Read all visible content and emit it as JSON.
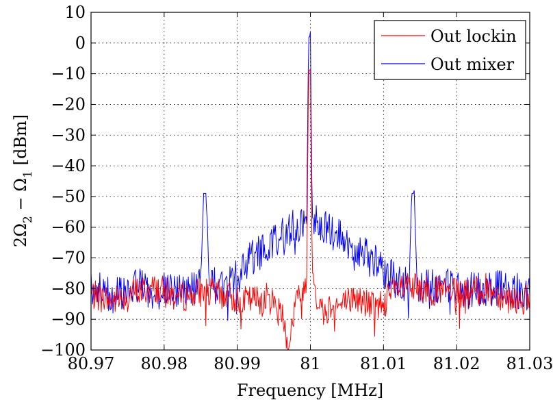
{
  "chart_data": {
    "type": "line",
    "xlabel": "Frequency [MHz]",
    "ylabel_parts": [
      "2Ω",
      "2",
      " − Ω",
      "1",
      " [dBm]"
    ],
    "xlim": [
      80.97,
      81.03
    ],
    "ylim": [
      -100,
      10
    ],
    "xticks": [
      "80.97",
      "80.98",
      "80.99",
      "81",
      "81.01",
      "81.02",
      "81.03"
    ],
    "yticks": [
      "10",
      "0",
      "−10",
      "−20",
      "−30",
      "−40",
      "−50",
      "−60",
      "−70",
      "−80",
      "−90",
      "−100"
    ],
    "grid": true,
    "legend": {
      "position": "top-right"
    },
    "series": [
      {
        "name": "Out lockin",
        "color": "#ff0000",
        "x": [
          80.97,
          80.973,
          80.976,
          80.979,
          80.982,
          80.985,
          80.988,
          80.991,
          80.994,
          80.996,
          80.997,
          80.998,
          80.999,
          80.9995,
          81.0,
          81.0005,
          81.001,
          81.002,
          81.003,
          81.004,
          81.006,
          81.009,
          81.012,
          81.015,
          81.018,
          81.021,
          81.024,
          81.027,
          81.03
        ],
        "values": [
          -82,
          -84,
          -81,
          -80,
          -83,
          -81,
          -82,
          -84,
          -83,
          -86,
          -99,
          -84,
          -82,
          -75,
          -9,
          -75,
          -85,
          -88,
          -84,
          -86,
          -83,
          -86,
          -80,
          -80,
          -81,
          -82,
          -80,
          -83,
          -84
        ]
      },
      {
        "name": "Out mixer",
        "color": "#0000ff",
        "x": [
          80.97,
          80.973,
          80.976,
          80.979,
          80.982,
          80.985,
          80.9858,
          80.9865,
          80.988,
          80.99,
          80.992,
          80.994,
          80.996,
          80.998,
          80.999,
          80.9995,
          81.0,
          81.0005,
          81.001,
          81.002,
          81.004,
          81.006,
          81.008,
          81.01,
          81.012,
          81.0135,
          81.0142,
          81.015,
          81.018,
          81.021,
          81.024,
          81.027,
          81.03
        ],
        "values": [
          -80,
          -82,
          -79,
          -81,
          -80,
          -79,
          -49,
          -79,
          -79,
          -76,
          -70,
          -67,
          -62,
          -60,
          -58,
          -57,
          2,
          -57,
          -58,
          -60,
          -63,
          -67,
          -70,
          -74,
          -78,
          -79,
          -49,
          -79,
          -79,
          -81,
          -80,
          -80,
          -82
        ]
      }
    ]
  }
}
